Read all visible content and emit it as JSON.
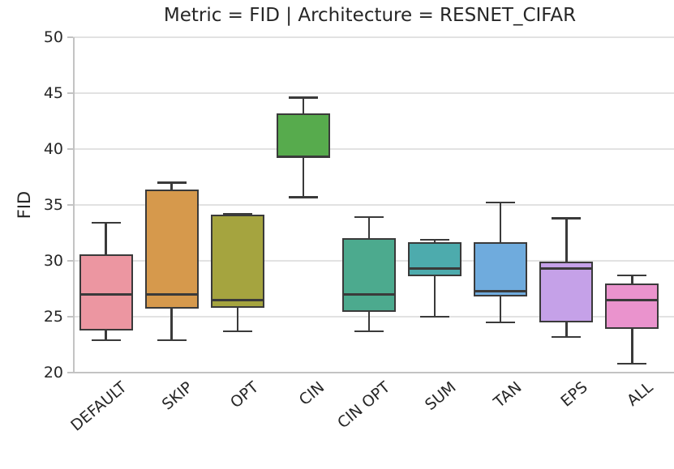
{
  "chart_data": {
    "type": "boxplot",
    "title": "Metric = FID | Architecture = RESNET_CIFAR",
    "ylabel": "FID",
    "xlabel": "",
    "ylim": [
      20,
      50
    ],
    "yticks": [
      20,
      25,
      30,
      35,
      40,
      45,
      50
    ],
    "grid": "horizontal",
    "legend": "none",
    "categories": [
      "DEFAULT",
      "SKIP",
      "OPT",
      "CIN",
      "CIN OPT",
      "SUM",
      "TAN",
      "EPS",
      "ALL"
    ],
    "series": [
      {
        "label": "DEFAULT",
        "color": "#ec96a1",
        "whislo": 22.9,
        "q1": 23.8,
        "med": 27.0,
        "q3": 30.6,
        "whishi": 33.4
      },
      {
        "label": "SKIP",
        "color": "#d6994c",
        "whislo": 22.9,
        "q1": 25.7,
        "med": 27.0,
        "q3": 36.4,
        "whishi": 37.0
      },
      {
        "label": "OPT",
        "color": "#a5a43f",
        "whislo": 23.7,
        "q1": 25.8,
        "med": 26.5,
        "q3": 34.1,
        "whishi": 34.2
      },
      {
        "label": "CIN",
        "color": "#57ab4d",
        "whislo": 35.7,
        "q1": 39.3,
        "med": 39.3,
        "q3": 43.2,
        "whishi": 44.6
      },
      {
        "label": "CIN OPT",
        "color": "#4caa8e",
        "whislo": 23.7,
        "q1": 25.4,
        "med": 27.0,
        "q3": 32.0,
        "whishi": 33.9
      },
      {
        "label": "SUM",
        "color": "#4dabad",
        "whislo": 25.0,
        "q1": 28.6,
        "med": 29.3,
        "q3": 31.7,
        "whishi": 31.9
      },
      {
        "label": "TAN",
        "color": "#6fabdd",
        "whislo": 24.5,
        "q1": 26.8,
        "med": 27.3,
        "q3": 31.7,
        "whishi": 35.2
      },
      {
        "label": "EPS",
        "color": "#c5a1e8",
        "whislo": 23.2,
        "q1": 24.5,
        "med": 29.3,
        "q3": 29.9,
        "whishi": 33.8
      },
      {
        "label": "ALL",
        "color": "#ea93cd",
        "whislo": 20.8,
        "q1": 23.9,
        "med": 26.5,
        "q3": 28.0,
        "whishi": 28.7
      }
    ],
    "colors": {
      "box_edge": "#3a3a3a",
      "grid": "#e2e2e2",
      "spine": "#c3c3c3",
      "text": "#262626"
    }
  }
}
